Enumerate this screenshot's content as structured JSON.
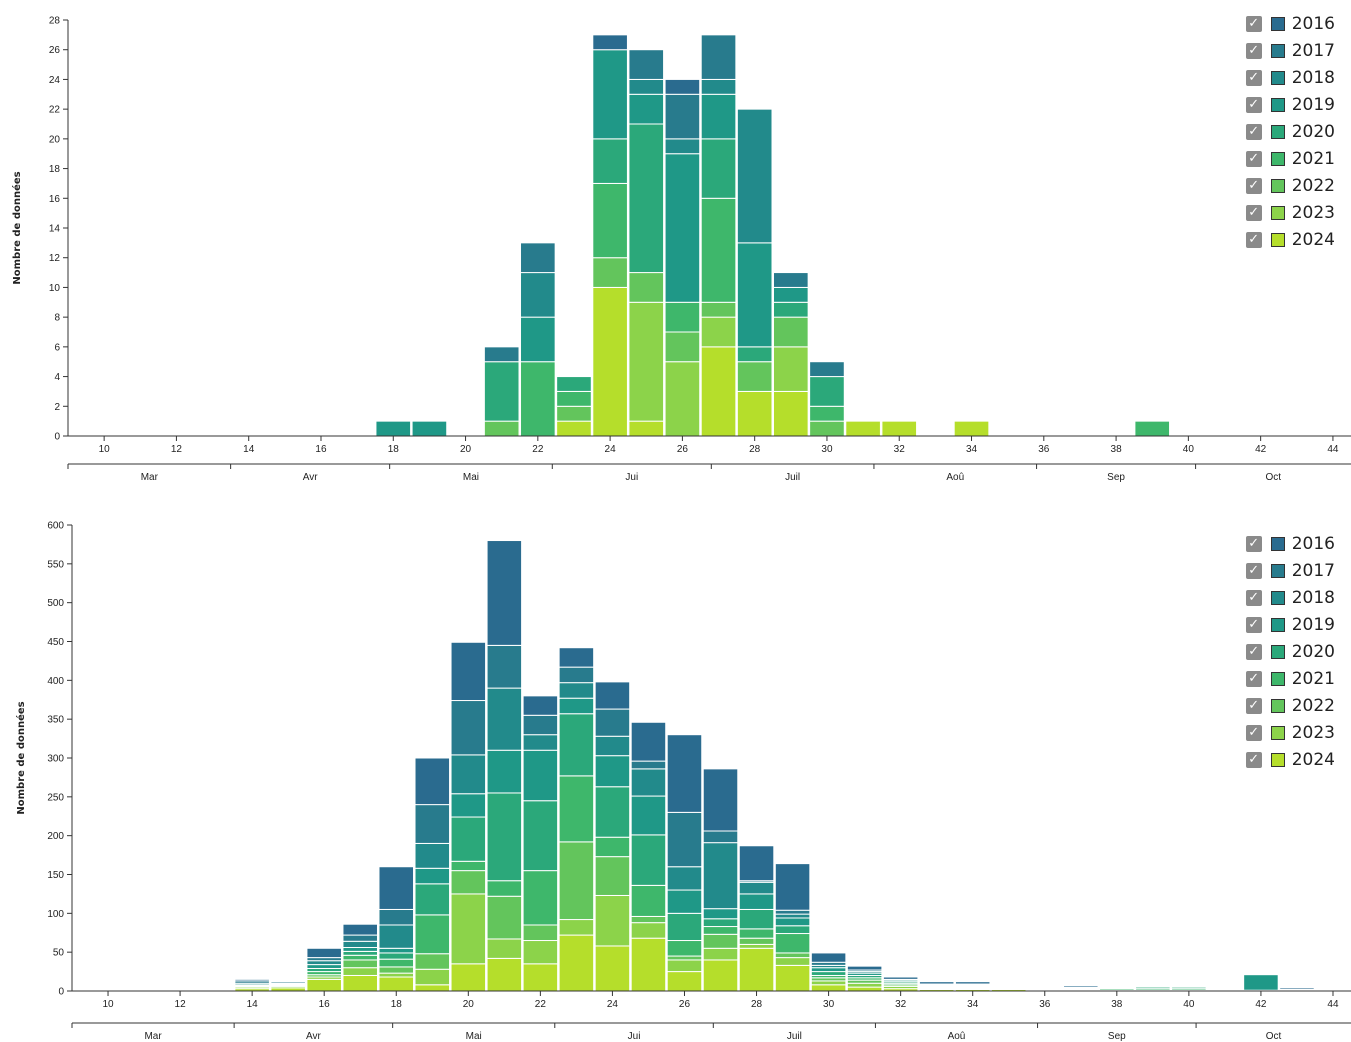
{
  "chart_data": [
    {
      "type": "bar",
      "stacked": true,
      "ylabel": "Nombre de données",
      "ylim": [
        0,
        28
      ],
      "yticks": [
        0,
        2,
        4,
        6,
        8,
        10,
        12,
        14,
        16,
        18,
        20,
        22,
        24,
        26,
        28
      ],
      "xlim": [
        9,
        44.5
      ],
      "xticks": [
        10,
        12,
        14,
        16,
        18,
        20,
        22,
        24,
        26,
        28,
        30,
        32,
        34,
        36,
        38,
        40,
        42,
        44
      ],
      "months": [
        {
          "label": "Mar",
          "start": 9,
          "end": 13.5
        },
        {
          "label": "Avr",
          "start": 13.5,
          "end": 17.9
        },
        {
          "label": "Mai",
          "start": 17.9,
          "end": 22.4
        },
        {
          "label": "Jui",
          "start": 22.4,
          "end": 26.8
        },
        {
          "label": "Juil",
          "start": 26.8,
          "end": 31.3
        },
        {
          "label": "Aoû",
          "start": 31.3,
          "end": 35.8
        },
        {
          "label": "Sep",
          "start": 35.8,
          "end": 40.2
        },
        {
          "label": "Oct",
          "start": 40.2,
          "end": 44.5
        }
      ],
      "legend_top": 10,
      "series": [
        {
          "name": "2024",
          "values": {
            "21": 0,
            "23": 1,
            "24": 10,
            "25": 1,
            "26": 0,
            "27": 6,
            "28": 3,
            "29": 3,
            "31": 1,
            "32": 1,
            "34": 1
          }
        },
        {
          "name": "2023",
          "values": {
            "23": 0,
            "24": 0,
            "25": 8,
            "26": 5,
            "27": 2,
            "29": 3
          }
        },
        {
          "name": "2022",
          "values": {
            "21": 1,
            "23": 1,
            "24": 2,
            "25": 2,
            "26": 2,
            "27": 1,
            "28": 2,
            "29": 2,
            "30": 1
          }
        },
        {
          "name": "2021",
          "values": {
            "22": 5,
            "23": 1,
            "24": 5,
            "26": 2,
            "27": 7,
            "29": 0,
            "30": 1,
            "39": 1
          }
        },
        {
          "name": "2020",
          "values": {
            "21": 4,
            "23": 1,
            "24": 3,
            "25": 10,
            "27": 4,
            "28": 1,
            "29": 1,
            "30": 2
          }
        },
        {
          "name": "2019",
          "values": {
            "18": 1,
            "19": 1,
            "22": 3,
            "24": 6,
            "25": 2,
            "26": 10,
            "27": 3,
            "28": 7,
            "29": 1
          }
        },
        {
          "name": "2018",
          "values": {
            "22": 3,
            "25": 1,
            "26": 1,
            "27": 1,
            "28": 9,
            "30": 0
          }
        },
        {
          "name": "2017",
          "values": {
            "21": 1,
            "22": 2,
            "25": 2,
            "26": 3,
            "27": 3,
            "28": 0,
            "29": 1,
            "30": 1
          }
        },
        {
          "name": "2016",
          "values": {
            "24": 1,
            "26": 1
          }
        }
      ]
    },
    {
      "type": "bar",
      "stacked": true,
      "ylabel": "Nombre de données",
      "ylim": [
        0,
        600
      ],
      "yticks": [
        0,
        50,
        100,
        150,
        200,
        250,
        300,
        350,
        400,
        450,
        500,
        550,
        600
      ],
      "xlim": [
        9,
        44.5
      ],
      "xticks": [
        10,
        12,
        14,
        16,
        18,
        20,
        22,
        24,
        26,
        28,
        30,
        32,
        34,
        36,
        38,
        40,
        42,
        44
      ],
      "months": [
        {
          "label": "Mar",
          "start": 9,
          "end": 13.5
        },
        {
          "label": "Avr",
          "start": 13.5,
          "end": 17.9
        },
        {
          "label": "Mai",
          "start": 17.9,
          "end": 22.4
        },
        {
          "label": "Jui",
          "start": 22.4,
          "end": 26.8
        },
        {
          "label": "Juil",
          "start": 26.8,
          "end": 31.3
        },
        {
          "label": "Aoû",
          "start": 31.3,
          "end": 35.8
        },
        {
          "label": "Sep",
          "start": 35.8,
          "end": 40.2
        },
        {
          "label": "Oct",
          "start": 40.2,
          "end": 44.5
        }
      ],
      "legend_top": 20,
      "series": [
        {
          "name": "2024",
          "values": {
            "13": 1,
            "14": 3,
            "15": 4,
            "16": 15,
            "17": 20,
            "18": 18,
            "19": 8,
            "20": 35,
            "21": 42,
            "22": 35,
            "23": 72,
            "24": 58,
            "25": 68,
            "26": 25,
            "27": 40,
            "28": 55,
            "29": 33,
            "30": 8,
            "31": 5,
            "32": 3,
            "33": 2,
            "34": 2,
            "35": 2,
            "36": 1,
            "37": 1,
            "38": 1,
            "39": 1,
            "40": 1,
            "41": 1,
            "42": 1,
            "43": 1,
            "44": 1
          }
        },
        {
          "name": "2023",
          "values": {
            "14": 2,
            "15": 2,
            "16": 3,
            "17": 10,
            "18": 5,
            "19": 20,
            "20": 90,
            "21": 25,
            "22": 30,
            "23": 20,
            "24": 65,
            "25": 20,
            "26": 15,
            "27": 15,
            "28": 5,
            "29": 10,
            "30": 5,
            "31": 5,
            "32": 3,
            "33": 1,
            "34": 1
          }
        },
        {
          "name": "2022",
          "values": {
            "16": 3,
            "17": 10,
            "18": 8,
            "19": 20,
            "20": 30,
            "21": 55,
            "22": 20,
            "23": 100,
            "24": 50,
            "25": 8,
            "26": 5,
            "27": 18,
            "28": 8,
            "29": 6,
            "30": 4,
            "31": 4,
            "32": 2,
            "33": 1,
            "34": 1,
            "35": 1,
            "36": 1
          }
        },
        {
          "name": "2021",
          "values": {
            "14": 1,
            "15": 1,
            "16": 4,
            "17": 6,
            "18": 10,
            "19": 50,
            "20": 12,
            "21": 20,
            "22": 70,
            "23": 85,
            "24": 25,
            "25": 40,
            "26": 20,
            "27": 10,
            "28": 12,
            "29": 25,
            "30": 3,
            "31": 3,
            "32": 2,
            "33": 1,
            "34": 1,
            "37": 1,
            "38": 2,
            "39": 2,
            "40": 2
          }
        },
        {
          "name": "2020",
          "values": {
            "14": 1,
            "15": 1,
            "16": 4,
            "17": 5,
            "18": 8,
            "19": 40,
            "20": 57,
            "21": 113,
            "22": 90,
            "23": 80,
            "24": 65,
            "25": 65,
            "26": 35,
            "27": 10,
            "28": 25,
            "29": 10,
            "30": 5,
            "31": 3,
            "32": 2,
            "33": 1,
            "34": 1,
            "37": 1,
            "38": 1,
            "39": 2,
            "40": 2
          }
        },
        {
          "name": "2019",
          "values": {
            "14": 1,
            "15": 1,
            "16": 5,
            "17": 5,
            "18": 6,
            "19": 20,
            "20": 30,
            "21": 55,
            "22": 65,
            "23": 20,
            "24": 40,
            "25": 50,
            "26": 30,
            "27": 13,
            "28": 20,
            "29": 10,
            "30": 5,
            "31": 3,
            "32": 2,
            "33": 1,
            "34": 1,
            "37": 1,
            "38": 1,
            "40": 1,
            "42": 20
          }
        },
        {
          "name": "2018",
          "values": {
            "14": 2,
            "15": 1,
            "16": 5,
            "17": 8,
            "18": 30,
            "19": 32,
            "20": 50,
            "21": 80,
            "22": 20,
            "23": 20,
            "24": 25,
            "25": 35,
            "26": 30,
            "27": 85,
            "28": 15,
            "29": 5,
            "30": 3,
            "31": 2,
            "32": 1,
            "33": 1,
            "34": 1
          }
        },
        {
          "name": "2017",
          "values": {
            "14": 3,
            "15": 2,
            "16": 4,
            "17": 8,
            "18": 20,
            "19": 50,
            "20": 70,
            "21": 55,
            "22": 25,
            "23": 20,
            "24": 35,
            "25": 10,
            "26": 70,
            "27": 15,
            "28": 2,
            "29": 5,
            "30": 4,
            "31": 2,
            "33": 1,
            "34": 1,
            "37": 1,
            "43": 1
          }
        },
        {
          "name": "2016",
          "values": {
            "14": 2,
            "15": 1,
            "16": 12,
            "17": 14,
            "18": 55,
            "19": 60,
            "20": 75,
            "21": 135,
            "22": 25,
            "23": 25,
            "24": 35,
            "25": 50,
            "26": 100,
            "27": 80,
            "28": 45,
            "29": 60,
            "30": 12,
            "31": 5,
            "32": 3,
            "33": 3,
            "34": 3,
            "37": 2,
            "43": 2
          }
        }
      ]
    }
  ],
  "legend": {
    "check_glyph": "✓",
    "colors": {
      "2016": "#2a6b8f",
      "2017": "#287b8d",
      "2018": "#228a8b",
      "2019": "#1f9887",
      "2020": "#2ba87a",
      "2021": "#3eb76b",
      "2022": "#63c55c",
      "2023": "#8cd34a",
      "2024": "#b5de2b"
    },
    "order": [
      "2016",
      "2017",
      "2018",
      "2019",
      "2020",
      "2021",
      "2022",
      "2023",
      "2024"
    ]
  }
}
